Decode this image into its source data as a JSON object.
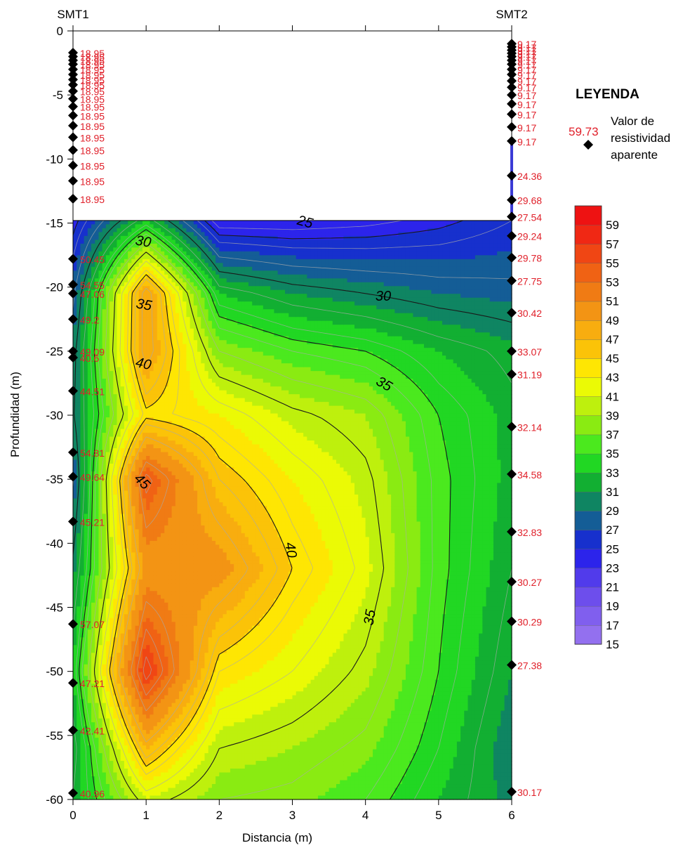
{
  "chart_data": {
    "type": "contour",
    "xlabel": "Distancia (m)",
    "ylabel": "Profundidad (m)",
    "xlim": [
      0,
      6
    ],
    "ylim": [
      -60,
      0
    ],
    "x_ticks": [
      0,
      1,
      2,
      3,
      4,
      5,
      6
    ],
    "y_ticks": [
      0,
      -5,
      -10,
      -15,
      -20,
      -25,
      -30,
      -35,
      -40,
      -45,
      -50,
      -55,
      -60
    ],
    "well_labels": [
      {
        "name": "SMT1",
        "x": 0
      },
      {
        "name": "SMT2",
        "x": 6
      }
    ],
    "contour_top": -14.8,
    "legend": {
      "title": "LEYENDA",
      "sample_value": "59.73",
      "sample_text_lines": [
        "Valor de",
        "resistividad",
        "aparente"
      ]
    },
    "colorbar_levels": [
      15,
      17,
      19,
      21,
      23,
      25,
      27,
      29,
      31,
      33,
      35,
      37,
      39,
      41,
      43,
      45,
      47,
      49,
      51,
      53,
      55,
      57,
      59,
      61
    ],
    "colorbar_labels": [
      59,
      57,
      55,
      53,
      51,
      49,
      47,
      45,
      43,
      41,
      39,
      37,
      35,
      33,
      31,
      29,
      27,
      25,
      23,
      21,
      19,
      17,
      15
    ],
    "contour_label_texts": [
      "25",
      "30",
      "30",
      "35",
      "35",
      "35",
      "40",
      "40",
      "45"
    ],
    "smt1_points": [
      {
        "depth": -1.7,
        "value": "18.95"
      },
      {
        "depth": -2.0,
        "value": "18.95"
      },
      {
        "depth": -2.3,
        "value": "18.95"
      },
      {
        "depth": -2.6,
        "value": "18.95"
      },
      {
        "depth": -3.0,
        "value": "18.95"
      },
      {
        "depth": -3.4,
        "value": "18.95"
      },
      {
        "depth": -3.8,
        "value": "18.95"
      },
      {
        "depth": -4.2,
        "value": "18.95"
      },
      {
        "depth": -4.7,
        "value": "18.95"
      },
      {
        "depth": -5.3,
        "value": "18.95"
      },
      {
        "depth": -5.9,
        "value": "18.95"
      },
      {
        "depth": -6.6,
        "value": "18.95"
      },
      {
        "depth": -7.4,
        "value": "18.95"
      },
      {
        "depth": -8.3,
        "value": "18.95"
      },
      {
        "depth": -9.3,
        "value": "18.95"
      },
      {
        "depth": -10.5,
        "value": "18.95"
      },
      {
        "depth": -11.7,
        "value": "18.95"
      },
      {
        "depth": -13.1,
        "value": "18.95"
      },
      {
        "depth": -17.8,
        "value": "50.45"
      },
      {
        "depth": -19.8,
        "value": "54.55"
      },
      {
        "depth": -20.5,
        "value": "47.06"
      },
      {
        "depth": -22.5,
        "value": "49.2"
      },
      {
        "depth": -25.0,
        "value": "49.09"
      },
      {
        "depth": -25.5,
        "value": "40.6"
      },
      {
        "depth": -28.1,
        "value": "44.51"
      },
      {
        "depth": -32.9,
        "value": "54.81"
      },
      {
        "depth": -34.8,
        "value": "49.64"
      },
      {
        "depth": -38.3,
        "value": "45.21"
      },
      {
        "depth": -46.3,
        "value": "57.07"
      },
      {
        "depth": -50.9,
        "value": "47.21"
      },
      {
        "depth": -54.6,
        "value": "42.41"
      },
      {
        "depth": -59.5,
        "value": "40.96"
      }
    ],
    "smt2_points": [
      {
        "depth": -1.0,
        "value": "9.17"
      },
      {
        "depth": -1.25,
        "value": "9.17"
      },
      {
        "depth": -1.5,
        "value": "9.17"
      },
      {
        "depth": -1.75,
        "value": "9.17"
      },
      {
        "depth": -2.0,
        "value": "9.17"
      },
      {
        "depth": -2.3,
        "value": "9.17"
      },
      {
        "depth": -2.6,
        "value": "9.17"
      },
      {
        "depth": -3.0,
        "value": "9.17"
      },
      {
        "depth": -3.4,
        "value": "9.17"
      },
      {
        "depth": -3.9,
        "value": "9.17"
      },
      {
        "depth": -4.4,
        "value": "9.17"
      },
      {
        "depth": -5.0,
        "value": "9.17"
      },
      {
        "depth": -5.7,
        "value": "9.17"
      },
      {
        "depth": -6.5,
        "value": "9.17"
      },
      {
        "depth": -7.5,
        "value": "9.17"
      },
      {
        "depth": -8.6,
        "value": "9.17"
      },
      {
        "depth": -11.3,
        "value": "24.36"
      },
      {
        "depth": -13.2,
        "value": "29.68"
      },
      {
        "depth": -14.5,
        "value": "27.54"
      },
      {
        "depth": -16.0,
        "value": "29.24"
      },
      {
        "depth": -17.7,
        "value": "29.78"
      },
      {
        "depth": -19.5,
        "value": "27.75"
      },
      {
        "depth": -22.0,
        "value": "30.42"
      },
      {
        "depth": -25.0,
        "value": "33.07"
      },
      {
        "depth": -26.8,
        "value": "31.19"
      },
      {
        "depth": -30.9,
        "value": "32.14"
      },
      {
        "depth": -34.6,
        "value": "34.58"
      },
      {
        "depth": -39.1,
        "value": "32.83"
      },
      {
        "depth": -43.0,
        "value": "30.27"
      },
      {
        "depth": -46.1,
        "value": "30.29"
      },
      {
        "depth": -49.5,
        "value": "27.38"
      },
      {
        "depth": -59.4,
        "value": "30.17"
      }
    ],
    "grid_depths": [
      -14.8,
      -20.5,
      -25,
      -30,
      -35,
      -42,
      -50,
      -56,
      -60
    ],
    "grid_columns": [
      [
        24.36,
        27.54,
        29.24,
        29.78,
        27.75,
        30.42,
        33.07,
        31.19,
        32.14
      ],
      [
        33,
        49.2,
        49.09,
        44.51,
        54.81,
        49.64,
        57.07,
        47.21,
        40.96
      ],
      [
        23,
        33,
        38,
        43,
        46,
        50,
        44,
        40,
        38
      ],
      [
        23,
        31,
        36,
        40.5,
        43,
        45,
        42,
        39,
        37.5
      ],
      [
        23.5,
        30,
        35,
        39,
        40.5,
        41.5,
        39.5,
        37.5,
        36
      ],
      [
        24.5,
        29,
        33,
        35,
        35.5,
        35.5,
        35,
        34,
        33
      ],
      [
        26,
        28.5,
        31.5,
        32.5,
        32.5,
        32,
        31,
        30,
        30.5
      ]
    ]
  }
}
